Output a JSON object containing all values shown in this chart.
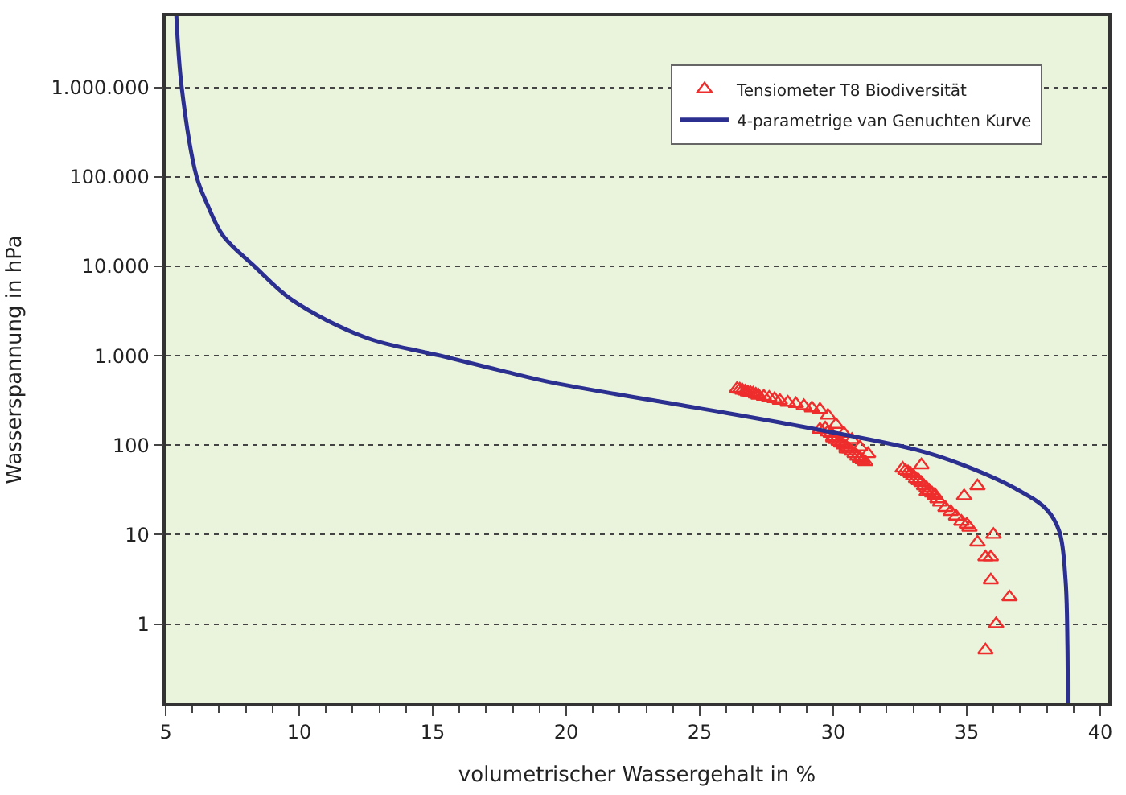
{
  "chart_data": {
    "type": "scatter",
    "xlabel": "volumetrischer Wassergehalt in %",
    "ylabel": "Wasserspannung in hPa",
    "xlim": [
      5,
      40.3
    ],
    "xticks": [
      5,
      10,
      15,
      20,
      25,
      30,
      35,
      40
    ],
    "ylim": [
      0.13,
      6300000
    ],
    "log": "y",
    "yticks": [
      1,
      10,
      100,
      {
        "value": 1000,
        "label": "1.000"
      },
      {
        "value": 10000,
        "label": "10.000"
      },
      {
        "value": 100000,
        "label": "100.000"
      },
      {
        "value": 1000000,
        "label": "1.000.000"
      }
    ],
    "grid": "y",
    "legend": "top right",
    "series": [
      {
        "name": "Tensiometer T8 Biodiversität",
        "marker": "triangle",
        "color": "#ee2d2d",
        "x": [
          26.4,
          26.5,
          26.6,
          26.7,
          26.8,
          26.9,
          27.0,
          27.1,
          27.2,
          27.4,
          27.6,
          27.8,
          28.0,
          28.3,
          28.6,
          28.9,
          29.2,
          29.5,
          29.8,
          30.1,
          30.4,
          30.7,
          31.0,
          31.3,
          29.5,
          29.7,
          29.8,
          29.9,
          30.0,
          30.1,
          30.2,
          30.3,
          30.4,
          30.5,
          30.6,
          30.7,
          30.8,
          30.9,
          31.0,
          31.1,
          31.2,
          30.0,
          30.5,
          31.0,
          32.6,
          32.7,
          32.8,
          32.9,
          33.0,
          33.1,
          33.2,
          33.3,
          33.4,
          33.5,
          33.6,
          33.7,
          33.8,
          33.9,
          34.0,
          34.2,
          34.4,
          34.6,
          34.8,
          35.0,
          35.1,
          33.0,
          33.2,
          33.5,
          33.8,
          33.3,
          35.4,
          34.9,
          36.0,
          35.4,
          35.7,
          35.9,
          35.9,
          36.6,
          36.1,
          35.7
        ],
        "values": [
          430,
          420,
          410,
          400,
          390,
          385,
          380,
          370,
          360,
          350,
          340,
          330,
          315,
          300,
          290,
          275,
          260,
          250,
          215,
          170,
          135,
          115,
          95,
          80,
          150,
          155,
          140,
          135,
          125,
          115,
          110,
          105,
          100,
          95,
          90,
          85,
          80,
          75,
          72,
          68,
          65,
          120,
          90,
          70,
          55,
          52,
          50,
          48,
          45,
          42,
          40,
          38,
          35,
          33,
          31,
          29,
          27,
          25,
          23,
          20,
          18,
          16,
          14,
          13,
          12,
          45,
          40,
          30,
          28,
          60,
          35,
          27,
          10,
          8.2,
          5.6,
          5.6,
          3.1,
          2.0,
          1.0,
          0.51
        ]
      },
      {
        "name": "4-parametrige van Genuchten Kurve",
        "type": "line",
        "marker": "none",
        "color": "#2b2f8f",
        "x": [
          5.4,
          5.6,
          6.16,
          6.55,
          7.15,
          8.33,
          9.74,
          12.5,
          15.3,
          17.5,
          19.5,
          24.85,
          28.8,
          33.1,
          34.8,
          36.8,
          38.0,
          38.47,
          38.7,
          38.77,
          38.78
        ],
        "values": [
          6300000,
          1000000,
          100000,
          50000,
          22000,
          10000,
          4200,
          1600,
          1000,
          690,
          500,
          263,
          162,
          89,
          61,
          33,
          19,
          10.8,
          3.1,
          0.59,
          0.13
        ]
      }
    ]
  }
}
